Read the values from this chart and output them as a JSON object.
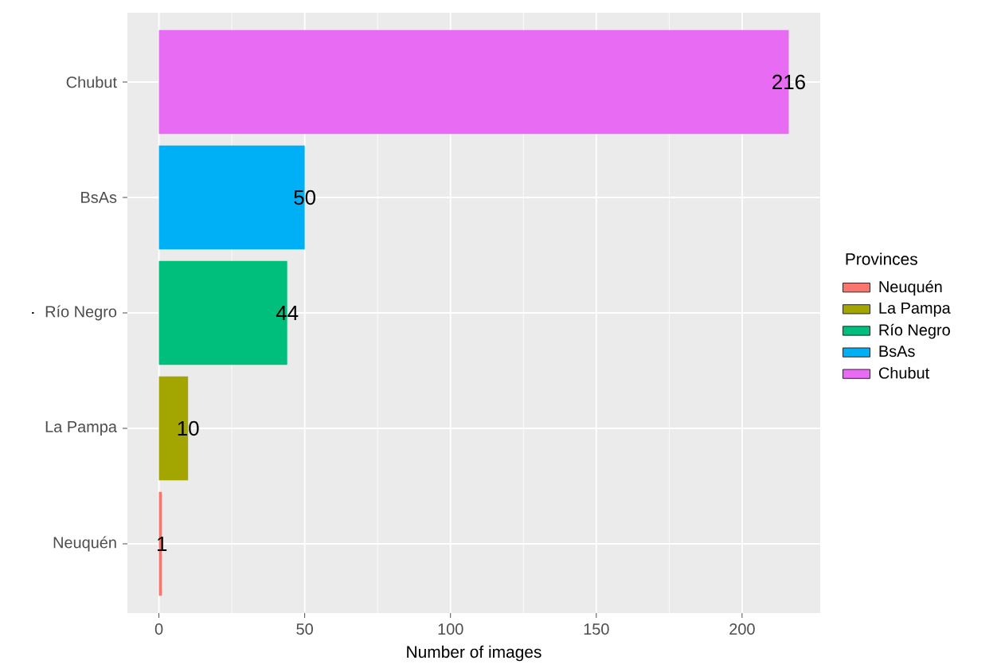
{
  "chart_data": {
    "type": "bar",
    "orientation": "horizontal",
    "xlabel": "Number of images",
    "ylabel": ".",
    "legend_title": "Provinces",
    "categories": [
      "Chubut",
      "BsAs",
      "Río Negro",
      "La Pampa",
      "Neuquén"
    ],
    "series": [
      {
        "name": "Neuquén",
        "color": "#f8766d",
        "values": [
          null,
          null,
          null,
          null,
          1
        ]
      },
      {
        "name": "La Pampa",
        "color": "#a3a500",
        "values": [
          null,
          null,
          null,
          10,
          null
        ]
      },
      {
        "name": "Río Negro",
        "color": "#00bf7d",
        "values": [
          null,
          null,
          44,
          null,
          null
        ]
      },
      {
        "name": "BsAs",
        "color": "#00b0f6",
        "values": [
          null,
          50,
          null,
          null,
          null
        ]
      },
      {
        "name": "Chubut",
        "color": "#e76bf3",
        "values": [
          216,
          null,
          null,
          null,
          null
        ]
      }
    ],
    "xlim": [
      -10.8,
      226.8
    ],
    "xticks": [
      0,
      50,
      100,
      150,
      200
    ],
    "grid": true,
    "data_labels": true,
    "legend": "right"
  }
}
